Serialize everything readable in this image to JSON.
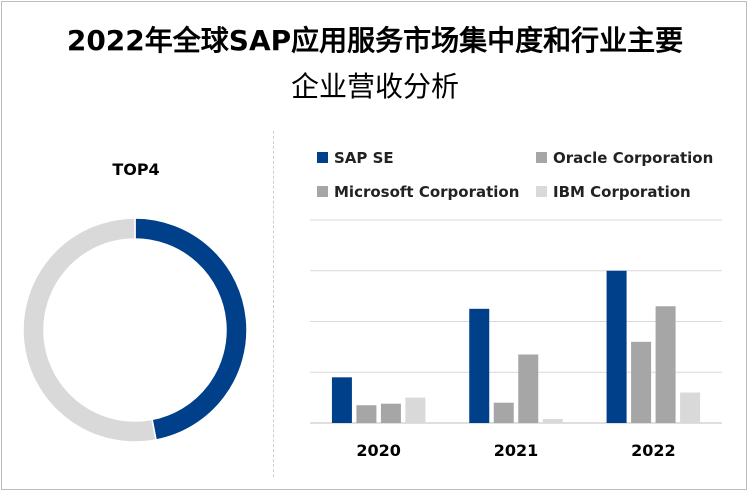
{
  "title_line1": "2022年全球SAP应用服务市场集中度和行业主要",
  "title_line2": "企业营收分析",
  "chart_data": [
    {
      "type": "pie",
      "title": "TOP4",
      "slices": [
        {
          "share": 0.47,
          "color": "#003f8a"
        },
        {
          "share": 0.53,
          "color": "#d9d9d9"
        }
      ]
    },
    {
      "type": "bar",
      "categories": [
        "2020",
        "2021",
        "2022"
      ],
      "series": [
        {
          "name": "SAP SE",
          "color": "#003f8a",
          "values": [
            9,
            22.5,
            30
          ]
        },
        {
          "name": "Oracle Corporation",
          "color": "#a6a6a6",
          "values": [
            3.5,
            4,
            16
          ]
        },
        {
          "name": "Microsoft Corporation",
          "color": "#a6a6a6",
          "values": [
            3.8,
            13.5,
            23
          ]
        },
        {
          "name": "IBM Corporation",
          "color": "#d9d9d9",
          "values": [
            5,
            0.8,
            6
          ]
        }
      ],
      "ylim": [
        0,
        40
      ],
      "gridlines": [
        10,
        20,
        30,
        40
      ],
      "legend_position": "top"
    }
  ]
}
